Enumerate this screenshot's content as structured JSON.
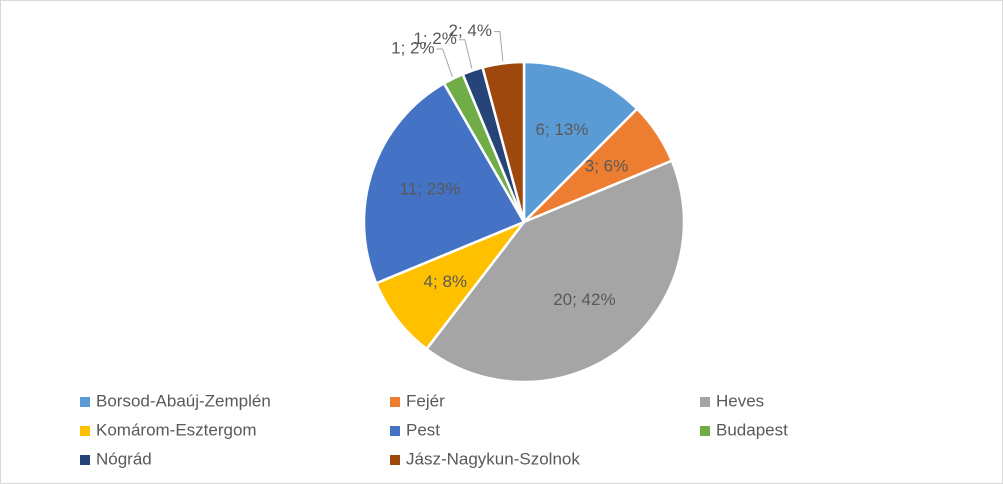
{
  "chart_data": {
    "type": "pie",
    "categories": [
      "Borsod-Abaúj-Zemplén",
      "Fejér",
      "Heves",
      "Komárom-Esztergom",
      "Pest",
      "Budapest",
      "Nógrád",
      "Jász-Nagykun-Szolnok"
    ],
    "values": [
      6,
      3,
      20,
      4,
      11,
      1,
      1,
      2
    ],
    "value_labels": [
      "6; 13%",
      "3; 6%",
      "20; 42%",
      "4; 8%",
      "11; 23%",
      "1; 2%",
      "1; 2%",
      "2; 4%"
    ],
    "colors": [
      "#5b9bd5",
      "#ed7d31",
      "#a5a5a5",
      "#ffc000",
      "#4472c4",
      "#70ad47",
      "#264478",
      "#9e480e"
    ],
    "legend": "bottom"
  }
}
